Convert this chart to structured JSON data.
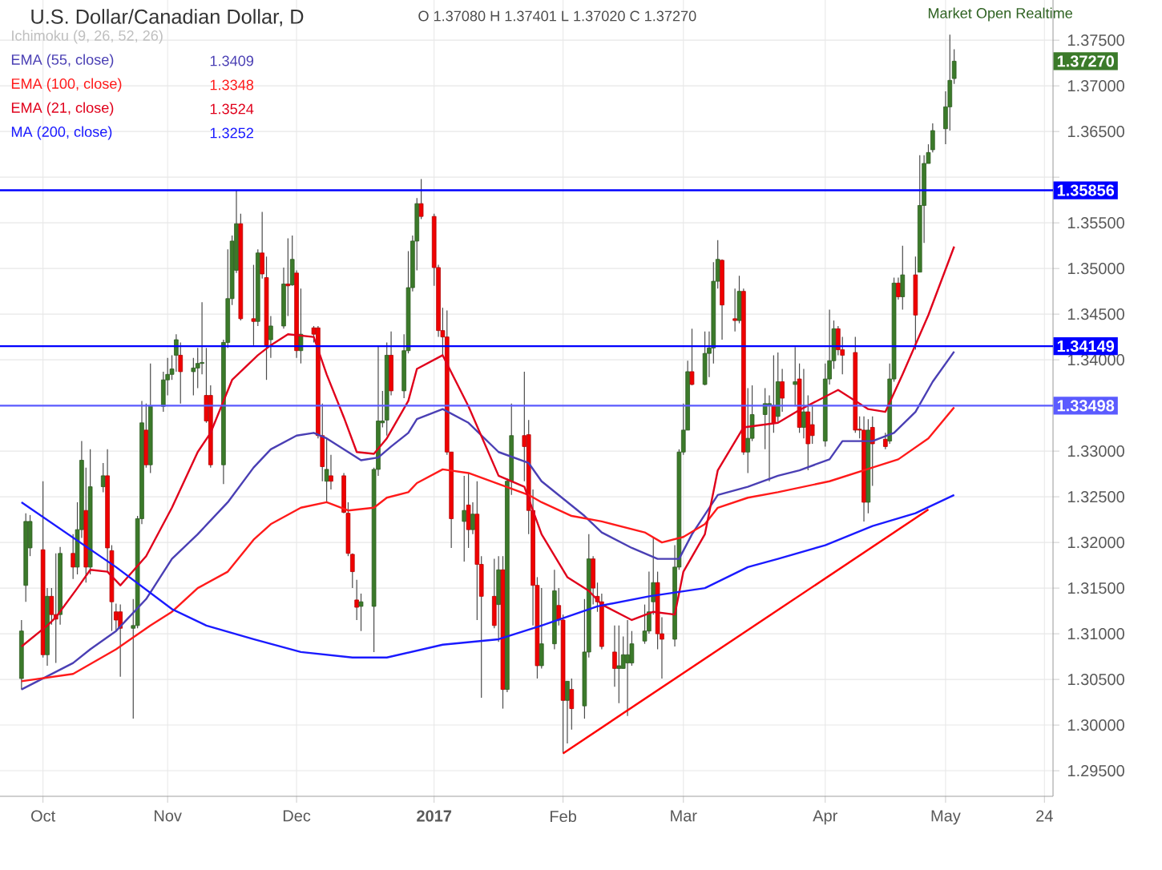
{
  "chart_data": {
    "type": "candlestick",
    "title": "U.S. Dollar/Canadian Dollar, D",
    "x": [
      "2016-09-28",
      "2016-09-29",
      "2016-09-30",
      "2016-10-03",
      "2016-10-04",
      "2016-10-05",
      "2016-10-06",
      "2016-10-07",
      "2016-10-10",
      "2016-10-11",
      "2016-10-12",
      "2016-10-13",
      "2016-10-14",
      "2016-10-17",
      "2016-10-18",
      "2016-10-19",
      "2016-10-20",
      "2016-10-21",
      "2016-10-24",
      "2016-10-25",
      "2016-10-26",
      "2016-10-27",
      "2016-10-28",
      "2016-10-31",
      "2016-11-01",
      "2016-11-02",
      "2016-11-03",
      "2016-11-04",
      "2016-11-07",
      "2016-11-08",
      "2016-11-09",
      "2016-11-10",
      "2016-11-11",
      "2016-11-14",
      "2016-11-15",
      "2016-11-16",
      "2016-11-17",
      "2016-11-18",
      "2016-11-21",
      "2016-11-22",
      "2016-11-23",
      "2016-11-24",
      "2016-11-25",
      "2016-11-28",
      "2016-11-29",
      "2016-11-30",
      "2016-12-01",
      "2016-12-02",
      "2016-12-05",
      "2016-12-06",
      "2016-12-07",
      "2016-12-08",
      "2016-12-09",
      "2016-12-12",
      "2016-12-13",
      "2016-12-14",
      "2016-12-15",
      "2016-12-16",
      "2016-12-19",
      "2016-12-20",
      "2016-12-21",
      "2016-12-22",
      "2016-12-23",
      "2016-12-26",
      "2016-12-27",
      "2016-12-28",
      "2016-12-29",
      "2016-12-30",
      "2017-01-02",
      "2017-01-03",
      "2017-01-04",
      "2017-01-05",
      "2017-01-06",
      "2017-01-09",
      "2017-01-10",
      "2017-01-11",
      "2017-01-12",
      "2017-01-13",
      "2017-01-16",
      "2017-01-17",
      "2017-01-18",
      "2017-01-19",
      "2017-01-20",
      "2017-01-23",
      "2017-01-24",
      "2017-01-25",
      "2017-01-26",
      "2017-01-27",
      "2017-01-30",
      "2017-01-31",
      "2017-02-01",
      "2017-02-02",
      "2017-02-03",
      "2017-02-06",
      "2017-02-07",
      "2017-02-08",
      "2017-02-09",
      "2017-02-10",
      "2017-02-13",
      "2017-02-14",
      "2017-02-15",
      "2017-02-16",
      "2017-02-17",
      "2017-02-20",
      "2017-02-21",
      "2017-02-22",
      "2017-02-23",
      "2017-02-24",
      "2017-02-27",
      "2017-02-28",
      "2017-03-01",
      "2017-03-02",
      "2017-03-03",
      "2017-03-06",
      "2017-03-07",
      "2017-03-08",
      "2017-03-09",
      "2017-03-10",
      "2017-03-13",
      "2017-03-14",
      "2017-03-15",
      "2017-03-16",
      "2017-03-17",
      "2017-03-20",
      "2017-03-21",
      "2017-03-22",
      "2017-03-23",
      "2017-03-24",
      "2017-03-27",
      "2017-03-28",
      "2017-03-29",
      "2017-03-30",
      "2017-03-31",
      "2017-04-03",
      "2017-04-04",
      "2017-04-05",
      "2017-04-06",
      "2017-04-07",
      "2017-04-10",
      "2017-04-11",
      "2017-04-12",
      "2017-04-13",
      "2017-04-14",
      "2017-04-17",
      "2017-04-18",
      "2017-04-19",
      "2017-04-20",
      "2017-04-21",
      "2017-04-24",
      "2017-04-25",
      "2017-04-26",
      "2017-04-27",
      "2017-04-28",
      "2017-05-01",
      "2017-05-02",
      "2017-05-03"
    ],
    "ohlc": [
      [
        1.3051,
        1.3115,
        1.3039,
        1.3103
      ],
      [
        1.3153,
        1.3232,
        1.3135,
        1.3223
      ],
      [
        1.3194,
        1.323,
        1.3185,
        1.3223
      ],
      [
        1.3192,
        1.3267,
        1.3074,
        1.3077
      ],
      [
        1.3077,
        1.315,
        1.3065,
        1.3141
      ],
      [
        1.3141,
        1.315,
        1.311,
        1.3121
      ],
      [
        1.3121,
        1.3188,
        1.3068,
        1.3116
      ],
      [
        1.3121,
        1.3195,
        1.311,
        1.3188
      ],
      [
        1.3188,
        1.3209,
        1.316,
        1.3173
      ],
      [
        1.3173,
        1.3244,
        1.3165,
        1.3214
      ],
      [
        1.3214,
        1.3311,
        1.3205,
        1.329
      ],
      [
        1.3235,
        1.3282,
        1.3156,
        1.3173
      ],
      [
        1.3173,
        1.3302,
        1.3165,
        1.3261
      ],
      [
        1.3261,
        1.3287,
        1.3255,
        1.3273
      ],
      [
        1.3273,
        1.3302,
        1.3168,
        1.3194
      ],
      [
        1.3191,
        1.3197,
        1.3103,
        1.3135
      ],
      [
        1.3124,
        1.3133,
        1.3103,
        1.3115
      ],
      [
        1.3124,
        1.3132,
        1.3053,
        1.3106
      ],
      [
        1.3106,
        1.3138,
        1.3007,
        1.3109
      ],
      [
        1.3109,
        1.3229,
        1.3106,
        1.3226
      ],
      [
        1.3226,
        1.3355,
        1.322,
        1.3331
      ],
      [
        1.3323,
        1.3352,
        1.3282,
        1.3285
      ],
      [
        1.3285,
        1.3396,
        1.3276,
        1.3349
      ],
      [
        1.3349,
        1.3387,
        1.3343,
        1.3378
      ],
      [
        1.3378,
        1.3402,
        1.3361,
        1.3384
      ],
      [
        1.3384,
        1.3405,
        1.3378,
        1.339
      ],
      [
        1.3405,
        1.3428,
        1.3387,
        1.3422
      ],
      [
        1.3405,
        1.3419,
        1.3352,
        1.3387
      ],
      [
        1.3387,
        1.3402,
        1.3361,
        1.3391
      ],
      [
        1.3391,
        1.3413,
        1.3369,
        1.3396
      ],
      [
        1.3396,
        1.3463,
        1.3384,
        1.3397
      ],
      [
        1.3361,
        1.3413,
        1.3331,
        1.3333
      ],
      [
        1.3361,
        1.3372,
        1.3282,
        1.3285
      ],
      [
        1.3285,
        1.3422,
        1.3264,
        1.3419
      ],
      [
        1.3419,
        1.3521,
        1.3413,
        1.3467
      ],
      [
        1.3467,
        1.3536,
        1.346,
        1.353
      ],
      [
        1.3498,
        1.3586,
        1.3495,
        1.3549
      ],
      [
        1.3549,
        1.356,
        1.3443,
        1.3445
      ],
      [
        1.3445,
        1.3504,
        1.3416,
        1.3442
      ],
      [
        1.3442,
        1.3521,
        1.3437,
        1.3517
      ],
      [
        1.3517,
        1.3562,
        1.3489,
        1.3494
      ],
      [
        1.349,
        1.3513,
        1.3378,
        1.3416
      ],
      [
        1.3422,
        1.3448,
        1.3402,
        1.3437
      ],
      [
        1.3437,
        1.3501,
        1.3434,
        1.3483
      ],
      [
        1.3483,
        1.3533,
        1.3448,
        1.3481
      ],
      [
        1.3482,
        1.3536,
        1.3481,
        1.351
      ],
      [
        1.3495,
        1.3498,
        1.3402,
        1.341
      ],
      [
        1.341,
        1.3478,
        1.3396,
        1.3428
      ],
      [
        1.3435,
        1.3437,
        1.3419,
        1.3428
      ],
      [
        1.3435,
        1.3437,
        1.3314,
        1.3317
      ],
      [
        1.3317,
        1.3352,
        1.3267,
        1.3283
      ],
      [
        1.3267,
        1.3314,
        1.3244,
        1.328
      ],
      [
        1.3273,
        1.3296,
        1.3258,
        1.3267
      ],
      [
        1.3273,
        1.3276,
        1.3232,
        1.3233
      ],
      [
        1.3232,
        1.3244,
        1.3185,
        1.3188
      ],
      [
        1.3187,
        1.3188,
        1.315,
        1.3168
      ],
      [
        1.3137,
        1.3159,
        1.3115,
        1.3129
      ],
      [
        1.313,
        1.3144,
        1.3103,
        1.3135
      ],
      [
        1.313,
        1.3282,
        1.308,
        1.328
      ],
      [
        1.328,
        1.3416,
        1.3273,
        1.3333
      ],
      [
        1.3331,
        1.3366,
        1.3326,
        1.3333
      ],
      [
        1.3334,
        1.3419,
        1.3317,
        1.3405
      ],
      [
        1.3405,
        1.3431,
        1.3361,
        1.3366
      ],
      [
        1.3366,
        1.3428,
        1.3358,
        1.341
      ],
      [
        1.341,
        1.3519,
        1.3407,
        1.3479
      ],
      [
        1.3479,
        1.3536,
        1.3475,
        1.353
      ],
      [
        1.353,
        1.3577,
        1.3498,
        1.3571
      ],
      [
        1.3571,
        1.3598,
        1.3554,
        1.3557
      ],
      [
        1.3557,
        1.356,
        1.3481,
        1.3501
      ],
      [
        1.3501,
        1.3504,
        1.3425,
        1.3432
      ],
      [
        1.3432,
        1.3457,
        1.3405,
        1.3425
      ],
      [
        1.3425,
        1.3454,
        1.3296,
        1.3299
      ],
      [
        1.3299,
        1.3299,
        1.3194,
        1.3226
      ],
      [
        1.3223,
        1.3273,
        1.3179,
        1.3235
      ],
      [
        1.3241,
        1.3276,
        1.3194,
        1.3214
      ],
      [
        1.3214,
        1.3244,
        1.3209,
        1.3231
      ],
      [
        1.3231,
        1.3267,
        1.3115,
        1.3176
      ],
      [
        1.3176,
        1.3185,
        1.303,
        1.3141
      ],
      [
        1.3141,
        1.3182,
        1.3106,
        1.3109
      ],
      [
        1.3132,
        1.3185,
        1.3091,
        1.317
      ],
      [
        1.317,
        1.3185,
        1.3018,
        1.3039
      ],
      [
        1.3039,
        1.327,
        1.3036,
        1.3267
      ],
      [
        1.3267,
        1.3352,
        1.3252,
        1.3317
      ],
      [
        1.3317,
        1.3387,
        1.3267,
        1.3305
      ],
      [
        1.3318,
        1.3334,
        1.3209,
        1.3235
      ],
      [
        1.3235,
        1.3258,
        1.3109,
        1.3153
      ],
      [
        1.3153,
        1.3162,
        1.3051,
        1.3065
      ],
      [
        1.3065,
        1.315,
        1.3062,
        1.3089
      ],
      [
        1.3089,
        1.317,
        1.3083,
        1.3147
      ],
      [
        1.3131,
        1.315,
        1.3109,
        1.3115
      ],
      [
        1.3115,
        1.3121,
        1.2969,
        1.3027
      ],
      [
        1.3027,
        1.3048,
        1.298,
        1.3048
      ],
      [
        1.3039,
        1.3051,
        1.2995,
        1.3018
      ],
      [
        1.3021,
        1.3138,
        1.3007,
        1.308
      ],
      [
        1.308,
        1.3209,
        1.3074,
        1.3182
      ],
      [
        1.3182,
        1.3185,
        1.3132,
        1.315
      ],
      [
        1.3141,
        1.3156,
        1.3124,
        1.3135
      ],
      [
        1.3135,
        1.3144,
        1.3083,
        1.3086
      ],
      [
        1.308,
        1.3109,
        1.3042,
        1.3062
      ],
      [
        1.3062,
        1.3109,
        1.3024,
        1.3065
      ],
      [
        1.3062,
        1.3097,
        1.3062,
        1.3077
      ],
      [
        1.3068,
        1.3115,
        1.301,
        1.3077
      ],
      [
        1.3068,
        1.3103,
        1.3065,
        1.3089
      ],
      [
        1.3092,
        1.3132,
        1.3089,
        1.3103
      ],
      [
        1.3103,
        1.3168,
        1.31,
        1.3124
      ],
      [
        1.3135,
        1.3206,
        1.3121,
        1.3156
      ],
      [
        1.3156,
        1.3168,
        1.3083,
        1.31
      ],
      [
        1.31,
        1.3118,
        1.3051,
        1.3094
      ],
      [
        1.3094,
        1.3197,
        1.3086,
        1.3173
      ],
      [
        1.3173,
        1.3302,
        1.317,
        1.3299
      ],
      [
        1.3299,
        1.3352,
        1.3296,
        1.3323
      ],
      [
        1.3323,
        1.3399,
        1.3323,
        1.3387
      ],
      [
        1.3387,
        1.3434,
        1.3372,
        1.3373
      ],
      [
        1.3373,
        1.3431,
        1.3372,
        1.3407
      ],
      [
        1.3407,
        1.3431,
        1.3381,
        1.3413
      ],
      [
        1.3413,
        1.3507,
        1.3396,
        1.3486
      ],
      [
        1.3486,
        1.3531,
        1.3478,
        1.351
      ],
      [
        1.3509,
        1.351,
        1.3422,
        1.346
      ],
      [
        1.3445,
        1.3478,
        1.3431,
        1.3443
      ],
      [
        1.3443,
        1.3492,
        1.344,
        1.3475
      ],
      [
        1.3475,
        1.3478,
        1.3296,
        1.3299
      ],
      [
        1.3299,
        1.3369,
        1.3276,
        1.3314
      ],
      [
        1.3314,
        1.3372,
        1.3311,
        1.334
      ],
      [
        1.334,
        1.3369,
        1.3302,
        1.3352
      ],
      [
        1.335,
        1.3361,
        1.3267,
        1.3352
      ],
      [
        1.335,
        1.3405,
        1.332,
        1.3331
      ],
      [
        1.3338,
        1.3408,
        1.3332,
        1.3376
      ],
      [
        1.3376,
        1.339,
        1.3343,
        1.3358
      ],
      [
        1.3373,
        1.3414,
        1.3349,
        1.3376
      ],
      [
        1.3379,
        1.3396,
        1.332,
        1.3326
      ],
      [
        1.3326,
        1.339,
        1.3314,
        1.3343
      ],
      [
        1.3343,
        1.3361,
        1.3279,
        1.3308
      ],
      [
        1.3329,
        1.3349,
        1.3308,
        1.3317
      ],
      [
        1.3311,
        1.3396,
        1.3305,
        1.3379
      ],
      [
        1.3379,
        1.3455,
        1.3373,
        1.3399
      ],
      [
        1.3399,
        1.3443,
        1.339,
        1.3434
      ],
      [
        1.3434,
        1.3437,
        1.3405,
        1.3411
      ],
      [
        1.3411,
        1.3425,
        1.3384,
        1.3405
      ],
      [
        1.3408,
        1.3425,
        1.332,
        1.3323
      ],
      [
        1.3324,
        1.3338,
        1.3314,
        1.3323
      ],
      [
        1.3323,
        1.3338,
        1.3223,
        1.3244
      ],
      [
        1.3244,
        1.3335,
        1.3232,
        1.3323
      ],
      [
        1.3326,
        1.3338,
        1.3262,
        1.3308
      ],
      [
        1.3313,
        1.332,
        1.3302,
        1.3305
      ],
      [
        1.3311,
        1.3396,
        1.3308,
        1.3379
      ],
      [
        1.3379,
        1.349,
        1.3376,
        1.3484
      ],
      [
        1.3484,
        1.349,
        1.3466,
        1.3469
      ],
      [
        1.3469,
        1.3525,
        1.3455,
        1.3493
      ],
      [
        1.3493,
        1.3513,
        1.3411,
        1.3449
      ],
      [
        1.3496,
        1.3624,
        1.3496,
        1.3569
      ],
      [
        1.3569,
        1.3624,
        1.3528,
        1.3615
      ],
      [
        1.3615,
        1.3636,
        1.3615,
        1.3627
      ],
      [
        1.363,
        1.3659,
        1.3627,
        1.3651
      ],
      [
        1.3653,
        1.3694,
        1.3636,
        1.3677
      ],
      [
        1.3677,
        1.3756,
        1.3651,
        1.3706
      ],
      [
        1.3708,
        1.374,
        1.3702,
        1.3727
      ]
    ],
    "series": [
      {
        "type": "line",
        "name": "EMA (55, close)",
        "color": "#4a3fb4",
        "x": [
          "2016-09-28",
          "2016-10-10",
          "2016-10-14",
          "2016-10-20",
          "2016-10-27",
          "2016-11-02",
          "2016-11-08",
          "2016-11-15",
          "2016-11-21",
          "2016-11-25",
          "2016-12-01",
          "2016-12-05",
          "2016-12-08",
          "2016-12-13",
          "2016-12-16",
          "2016-12-20",
          "2016-12-23",
          "2016-12-27",
          "2016-12-29",
          "2017-01-04",
          "2017-01-10",
          "2017-01-17",
          "2017-01-24",
          "2017-01-27",
          "2017-02-06",
          "2017-02-10",
          "2017-02-17",
          "2017-02-23",
          "2017-02-28",
          "2017-03-03",
          "2017-03-09",
          "2017-03-16",
          "2017-03-23",
          "2017-03-28",
          "2017-04-04",
          "2017-04-07",
          "2017-04-14",
          "2017-04-19",
          "2017-04-24",
          "2017-04-28",
          "2017-05-03"
        ],
        "values": [
          1.3039,
          1.3068,
          1.3083,
          1.3103,
          1.3138,
          1.3182,
          1.3209,
          1.3244,
          1.3282,
          1.3302,
          1.3317,
          1.332,
          1.3314,
          1.3299,
          1.329,
          1.3293,
          1.3305,
          1.332,
          1.3335,
          1.3346,
          1.3331,
          1.3299,
          1.3287,
          1.3267,
          1.3229,
          1.3211,
          1.3194,
          1.3182,
          1.3182,
          1.3209,
          1.3252,
          1.3261,
          1.3273,
          1.3279,
          1.3291,
          1.3311,
          1.3311,
          1.332,
          1.3343,
          1.3376,
          1.3409
        ]
      },
      {
        "type": "line",
        "name": "EMA (100, close)",
        "color": "#ff1a1a",
        "x": [
          "2016-09-28",
          "2016-10-10",
          "2016-10-20",
          "2016-10-28",
          "2016-11-02",
          "2016-11-08",
          "2016-11-15",
          "2016-11-21",
          "2016-11-25",
          "2016-12-02",
          "2016-12-08",
          "2016-12-13",
          "2016-12-19",
          "2016-12-22",
          "2016-12-27",
          "2016-12-29",
          "2017-01-04",
          "2017-01-10",
          "2017-01-17",
          "2017-01-24",
          "2017-01-27",
          "2017-02-03",
          "2017-02-10",
          "2017-02-20",
          "2017-02-24",
          "2017-03-01",
          "2017-03-06",
          "2017-03-09",
          "2017-03-16",
          "2017-03-23",
          "2017-04-04",
          "2017-04-14",
          "2017-04-20",
          "2017-04-27",
          "2017-05-03"
        ],
        "values": [
          1.3048,
          1.3056,
          1.3083,
          1.3109,
          1.3124,
          1.315,
          1.3168,
          1.3203,
          1.322,
          1.3238,
          1.3244,
          1.3235,
          1.3238,
          1.3249,
          1.3255,
          1.3265,
          1.328,
          1.3276,
          1.3264,
          1.3252,
          1.3244,
          1.3229,
          1.3223,
          1.3211,
          1.32,
          1.3206,
          1.322,
          1.3238,
          1.3249,
          1.3255,
          1.3267,
          1.3282,
          1.3291,
          1.3314,
          1.3348
        ]
      },
      {
        "type": "line",
        "name": "EMA (21, close)",
        "color": "#e0001b",
        "x": [
          "2016-09-28",
          "2016-10-04",
          "2016-10-06",
          "2016-10-11",
          "2016-10-14",
          "2016-10-18",
          "2016-10-21",
          "2016-10-27",
          "2016-11-02",
          "2016-11-08",
          "2016-11-11",
          "2016-11-16",
          "2016-11-22",
          "2016-11-25",
          "2016-11-29",
          "2016-12-05",
          "2016-12-08",
          "2016-12-12",
          "2016-12-15",
          "2016-12-19",
          "2016-12-22",
          "2016-12-27",
          "2016-12-29",
          "2017-01-04",
          "2017-01-10",
          "2017-01-17",
          "2017-01-23",
          "2017-01-27",
          "2017-02-02",
          "2017-02-07",
          "2017-02-10",
          "2017-02-17",
          "2017-02-22",
          "2017-02-27",
          "2017-03-01",
          "2017-03-06",
          "2017-03-09",
          "2017-03-15",
          "2017-03-23",
          "2017-03-28",
          "2017-04-06",
          "2017-04-13",
          "2017-04-17",
          "2017-04-21",
          "2017-04-27",
          "2017-05-03"
        ],
        "values": [
          1.3086,
          1.3109,
          1.3118,
          1.315,
          1.317,
          1.3168,
          1.3153,
          1.3185,
          1.3238,
          1.3299,
          1.332,
          1.3378,
          1.3405,
          1.3416,
          1.3428,
          1.3425,
          1.3384,
          1.3337,
          1.3299,
          1.3297,
          1.3314,
          1.3355,
          1.339,
          1.3405,
          1.3349,
          1.3273,
          1.3261,
          1.3209,
          1.3162,
          1.3147,
          1.3132,
          1.3115,
          1.3124,
          1.3121,
          1.3168,
          1.3209,
          1.3279,
          1.3326,
          1.3331,
          1.3345,
          1.3367,
          1.3346,
          1.3343,
          1.3384,
          1.3449,
          1.3524
        ]
      },
      {
        "type": "line",
        "name": "MA (200, close)",
        "color": "#1a1aff",
        "x": [
          "2016-09-28",
          "2016-10-20",
          "2016-11-02",
          "2016-11-10",
          "2016-11-21",
          "2016-12-02",
          "2016-12-14",
          "2016-12-22",
          "2017-01-04",
          "2017-01-17",
          "2017-01-27",
          "2017-02-09",
          "2017-02-21",
          "2017-03-06",
          "2017-03-16",
          "2017-03-23",
          "2017-04-03",
          "2017-04-14",
          "2017-04-24",
          "2017-05-03"
        ],
        "values": [
          1.3244,
          1.3173,
          1.3127,
          1.3109,
          1.3094,
          1.308,
          1.3074,
          1.3074,
          1.3088,
          1.3094,
          1.3109,
          1.313,
          1.3141,
          1.315,
          1.3173,
          1.3182,
          1.3197,
          1.3218,
          1.3232,
          1.3252
        ]
      },
      {
        "type": "line",
        "color": "#ff0000",
        "x": [
          "2017-02-01",
          "2017-04-27"
        ],
        "values": [
          1.2969,
          1.3236
        ]
      }
    ],
    "xlim": [
      "2016-09-23",
      "2017-05-26"
    ],
    "xticks": [
      {
        "value": "2016-10-03",
        "label": "Oct"
      },
      {
        "value": "2016-11-01",
        "label": "Nov"
      },
      {
        "value": "2016-12-01",
        "label": "Dec"
      },
      {
        "value": "2017-01-02",
        "label": "**2017**"
      },
      {
        "value": "2017-02-01",
        "label": "Feb"
      },
      {
        "value": "2017-03-01",
        "label": "Mar"
      },
      {
        "value": "2017-04-03",
        "label": "Apr"
      },
      {
        "value": "2017-05-01",
        "label": "May"
      },
      {
        "value": "2017-05-24",
        "label": "24"
      }
    ],
    "ylim": [
      1.2922,
      1.3794
    ],
    "yticks": [
      {
        "value": 1.295,
        "label": "1.29500"
      },
      {
        "value": 1.3,
        "label": "1.30000"
      },
      {
        "value": 1.305,
        "label": "1.30500"
      },
      {
        "value": 1.31,
        "label": "1.31000"
      },
      {
        "value": 1.315,
        "label": "1.31500"
      },
      {
        "value": 1.32,
        "label": "1.32000"
      },
      {
        "value": 1.325,
        "label": "1.32500"
      },
      {
        "value": 1.33,
        "label": "1.33000"
      },
      {
        "value": 1.335,
        "label": null
      },
      {
        "value": 1.34,
        "label": "1.34000"
      },
      {
        "value": 1.345,
        "label": "1.34500"
      },
      {
        "value": 1.35,
        "label": "1.35000"
      },
      {
        "value": 1.355,
        "label": "1.35500"
      },
      {
        "value": 1.36,
        "label": null
      },
      {
        "value": 1.365,
        "label": "1.36500"
      },
      {
        "value": 1.37,
        "label": "1.37000"
      },
      {
        "value": 1.375,
        "label": "1.37500"
      }
    ],
    "grid": true,
    "legend": "top left",
    "ref_lines": [
      {
        "axis": "y",
        "value": 1.35856,
        "label": "1.35856",
        "color": "#0000ff"
      },
      {
        "axis": "y",
        "value": 1.34149,
        "label": "1.34149",
        "color": "#0000ff"
      },
      {
        "axis": "y",
        "value": 1.33498,
        "label": "1.33498",
        "color": "#5b5bff"
      }
    ],
    "annotations": [
      "O 1.37080 H 1.37401 L 1.37020 C 1.37270",
      "Market Open Realtime",
      "Ichimoku (9, 26, 52, 26)",
      "1.3409",
      "1.3348",
      "1.3524",
      "1.3252",
      "1.37270"
    ]
  }
}
